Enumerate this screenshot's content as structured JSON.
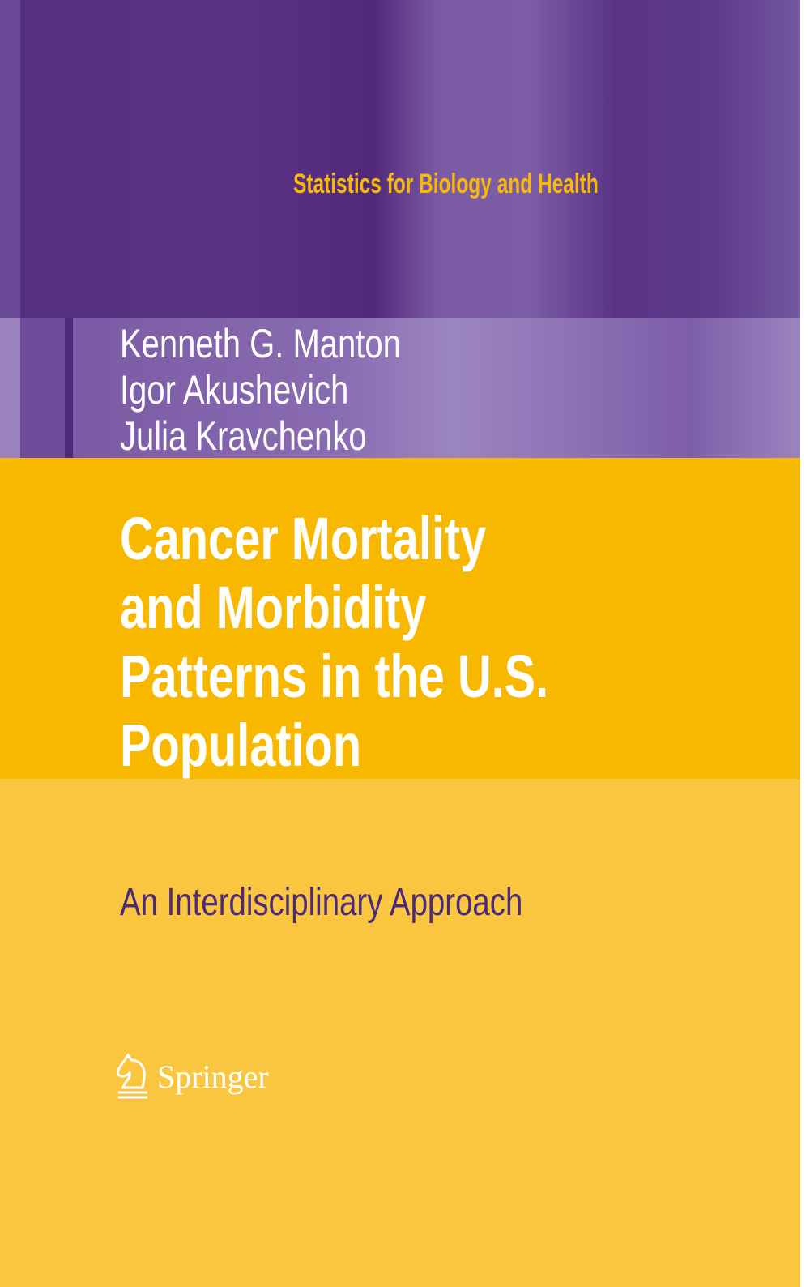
{
  "series": "Statistics for Biology and Health",
  "authors": [
    "Kenneth G. Manton",
    "Igor Akushevich",
    "Julia Kravchenko"
  ],
  "title_lines": [
    "Cancer Mortality",
    "and Morbidity",
    "Patterns in the U.S.",
    "Population"
  ],
  "subtitle": "An Interdisciplinary Approach",
  "publisher": {
    "name": "Springer",
    "logo_icon": "springer-horse-icon"
  },
  "colors": {
    "purple": "#55307f",
    "yellow_dark": "#f9b800",
    "yellow_light": "#fbc63f",
    "subtitle": "#4b2a78"
  }
}
